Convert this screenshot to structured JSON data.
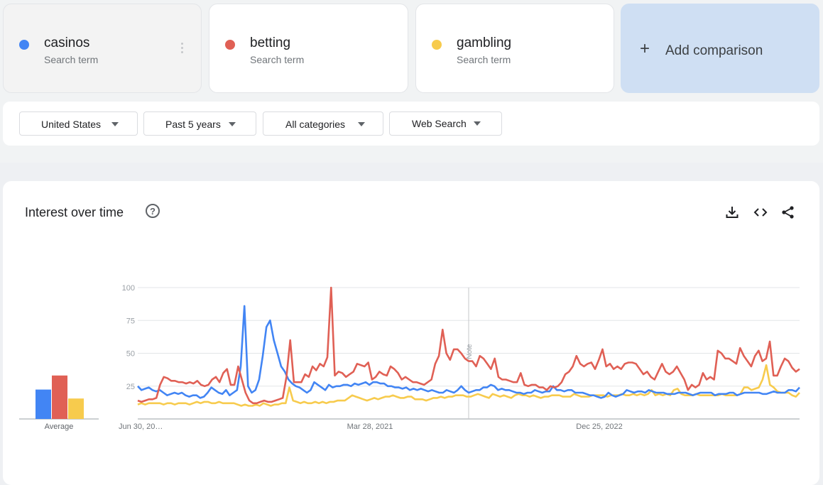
{
  "terms": [
    {
      "name": "casinos",
      "sub": "Search term",
      "color": "#4285f4"
    },
    {
      "name": "betting",
      "sub": "Search term",
      "color": "#db4437"
    },
    {
      "name": "gambling",
      "sub": "Search term",
      "color": "#f4c20d"
    }
  ],
  "add_comparison": {
    "plus": "+",
    "label": "Add comparison"
  },
  "filters": {
    "region": "United States",
    "time": "Past 5 years",
    "category": "All categories",
    "search_type": "Web Search"
  },
  "panel": {
    "title": "Interest over time",
    "help_glyph": "?",
    "icons": [
      "download-icon",
      "embed-code-icon",
      "share-icon"
    ]
  },
  "average": {
    "label": "Average",
    "values": [
      {
        "term": "casinos",
        "value": 23
      },
      {
        "term": "betting",
        "value": 34
      },
      {
        "term": "gambling",
        "value": 16
      }
    ]
  },
  "chart_data": {
    "type": "line",
    "y_ticks": [
      "100",
      "75",
      "50",
      "25"
    ],
    "ylim": [
      0,
      100
    ],
    "x_tick_labels": [
      "Jun 30, 20…",
      "Mar 28, 2021",
      "Dec 25, 2022"
    ],
    "note_label": "Note",
    "grid": true,
    "series": [
      {
        "name": "casinos",
        "color": "#4285f4",
        "values": [
          25,
          22,
          23,
          24,
          22,
          21,
          22,
          20,
          18,
          19,
          20,
          19,
          20,
          18,
          17,
          18,
          18,
          16,
          17,
          20,
          24,
          22,
          20,
          19,
          22,
          18,
          20,
          22,
          40,
          86,
          25,
          20,
          22,
          30,
          48,
          70,
          75,
          60,
          50,
          40,
          36,
          30,
          27,
          25,
          24,
          22,
          20,
          22,
          28,
          26,
          24,
          22,
          26,
          24,
          25,
          25,
          26,
          26,
          25,
          27,
          26,
          27,
          28,
          26,
          28,
          28,
          27,
          27,
          25,
          25,
          24,
          24,
          23,
          24,
          22,
          23,
          22,
          23,
          22,
          21,
          22,
          21,
          20,
          20,
          22,
          21,
          20,
          22,
          25,
          22,
          20,
          21,
          22,
          22,
          24,
          24,
          26,
          25,
          22,
          23,
          22,
          22,
          21,
          20,
          20,
          19,
          20,
          20,
          22,
          21,
          20,
          21,
          21,
          25,
          22,
          22,
          21,
          22,
          22,
          20,
          20,
          20,
          19,
          18,
          18,
          17,
          16,
          17,
          20,
          18,
          17,
          18,
          19,
          22,
          21,
          20,
          21,
          21,
          20,
          22,
          21,
          20,
          20,
          20,
          19,
          19,
          19,
          20,
          20,
          20,
          19,
          18,
          19,
          20,
          20,
          20,
          20,
          18,
          19,
          19,
          19,
          20,
          20,
          18,
          19,
          20,
          20,
          20,
          20,
          20,
          19,
          19,
          20,
          21,
          20,
          20,
          20,
          22,
          22,
          21,
          24
        ]
      },
      {
        "name": "betting",
        "color": "#db4437",
        "values": [
          14,
          13,
          14,
          15,
          15,
          16,
          26,
          32,
          31,
          29,
          29,
          28,
          28,
          27,
          28,
          27,
          29,
          26,
          25,
          26,
          30,
          32,
          28,
          35,
          38,
          26,
          26,
          40,
          30,
          20,
          14,
          12,
          12,
          13,
          14,
          13,
          13,
          14,
          15,
          16,
          32,
          60,
          28,
          28,
          28,
          34,
          32,
          40,
          37,
          42,
          40,
          47,
          100,
          33,
          36,
          35,
          32,
          34,
          36,
          42,
          41,
          40,
          43,
          30,
          32,
          36,
          34,
          33,
          40,
          38,
          35,
          30,
          32,
          30,
          28,
          28,
          27,
          26,
          28,
          30,
          42,
          48,
          68,
          50,
          45,
          53,
          53,
          50,
          46,
          44,
          44,
          40,
          48,
          46,
          42,
          38,
          46,
          32,
          30,
          30,
          29,
          28,
          28,
          35,
          26,
          25,
          26,
          26,
          24,
          24,
          22,
          25,
          24,
          25,
          28,
          34,
          36,
          40,
          48,
          42,
          40,
          42,
          43,
          38,
          45,
          53,
          40,
          42,
          38,
          40,
          38,
          42,
          43,
          43,
          42,
          38,
          34,
          36,
          32,
          30,
          36,
          42,
          36,
          34,
          36,
          40,
          35,
          30,
          22,
          26,
          24,
          26,
          35,
          30,
          32,
          30,
          52,
          50,
          46,
          46,
          44,
          42,
          54,
          48,
          44,
          40,
          48,
          52,
          44,
          46,
          59,
          33,
          33,
          40,
          46,
          44,
          39,
          36,
          38
        ]
      },
      {
        "name": "gambling",
        "color": "#f4c20d",
        "values": [
          11,
          12,
          11,
          12,
          12,
          12,
          12,
          11,
          12,
          12,
          11,
          12,
          12,
          12,
          11,
          12,
          13,
          12,
          13,
          13,
          12,
          12,
          13,
          12,
          12,
          12,
          12,
          11,
          10,
          11,
          10,
          10,
          11,
          10,
          12,
          11,
          10,
          11,
          11,
          12,
          12,
          24,
          14,
          13,
          12,
          13,
          12,
          12,
          13,
          12,
          13,
          12,
          13,
          13,
          14,
          14,
          14,
          16,
          18,
          17,
          16,
          15,
          14,
          15,
          16,
          15,
          16,
          17,
          17,
          18,
          17,
          16,
          16,
          17,
          17,
          15,
          15,
          15,
          14,
          15,
          16,
          16,
          17,
          16,
          17,
          17,
          18,
          18,
          18,
          17,
          17,
          18,
          19,
          18,
          17,
          16,
          19,
          18,
          17,
          18,
          17,
          16,
          18,
          19,
          18,
          18,
          17,
          18,
          17,
          16,
          17,
          17,
          18,
          18,
          18,
          17,
          17,
          17,
          19,
          18,
          17,
          17,
          17,
          18,
          18,
          18,
          18,
          17,
          18,
          18,
          18,
          19,
          18,
          18,
          19,
          18,
          19,
          18,
          19,
          22,
          18,
          19,
          18,
          19,
          18,
          22,
          23,
          19,
          18,
          18,
          18,
          19,
          18,
          18,
          18,
          18,
          18,
          18,
          19,
          18,
          18,
          18,
          18,
          19,
          24,
          24,
          22,
          23,
          24,
          30,
          41,
          26,
          24,
          21,
          20,
          20,
          20,
          18,
          17,
          20
        ]
      }
    ]
  }
}
